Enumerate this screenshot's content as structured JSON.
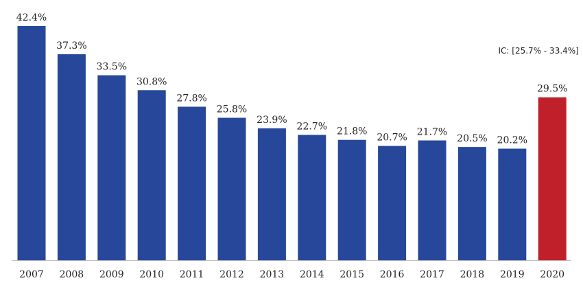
{
  "chart_data": {
    "type": "bar",
    "categories": [
      "2007",
      "2008",
      "2009",
      "2010",
      "2011",
      "2012",
      "2013",
      "2014",
      "2015",
      "2016",
      "2017",
      "2018",
      "2019",
      "2020"
    ],
    "values": [
      42.4,
      37.3,
      33.5,
      30.8,
      27.8,
      25.8,
      23.9,
      22.7,
      21.8,
      20.7,
      21.7,
      20.5,
      20.2,
      29.5
    ],
    "value_labels": [
      "42.4%",
      "37.3%",
      "33.5%",
      "30.8%",
      "27.8%",
      "25.8%",
      "23.9%",
      "22.7%",
      "21.8%",
      "20.7%",
      "21.7%",
      "20.5%",
      "20.2%",
      "29.5%"
    ],
    "ylim": [
      0,
      42.4
    ],
    "grid": false,
    "colors": {
      "default": "#26479a",
      "highlight": "#c0202a",
      "axis": "#bfbfbf"
    },
    "highlight_category": "2020",
    "annotation": {
      "text": "IC: [25.7% - 33.4%]",
      "category": "2020"
    }
  }
}
